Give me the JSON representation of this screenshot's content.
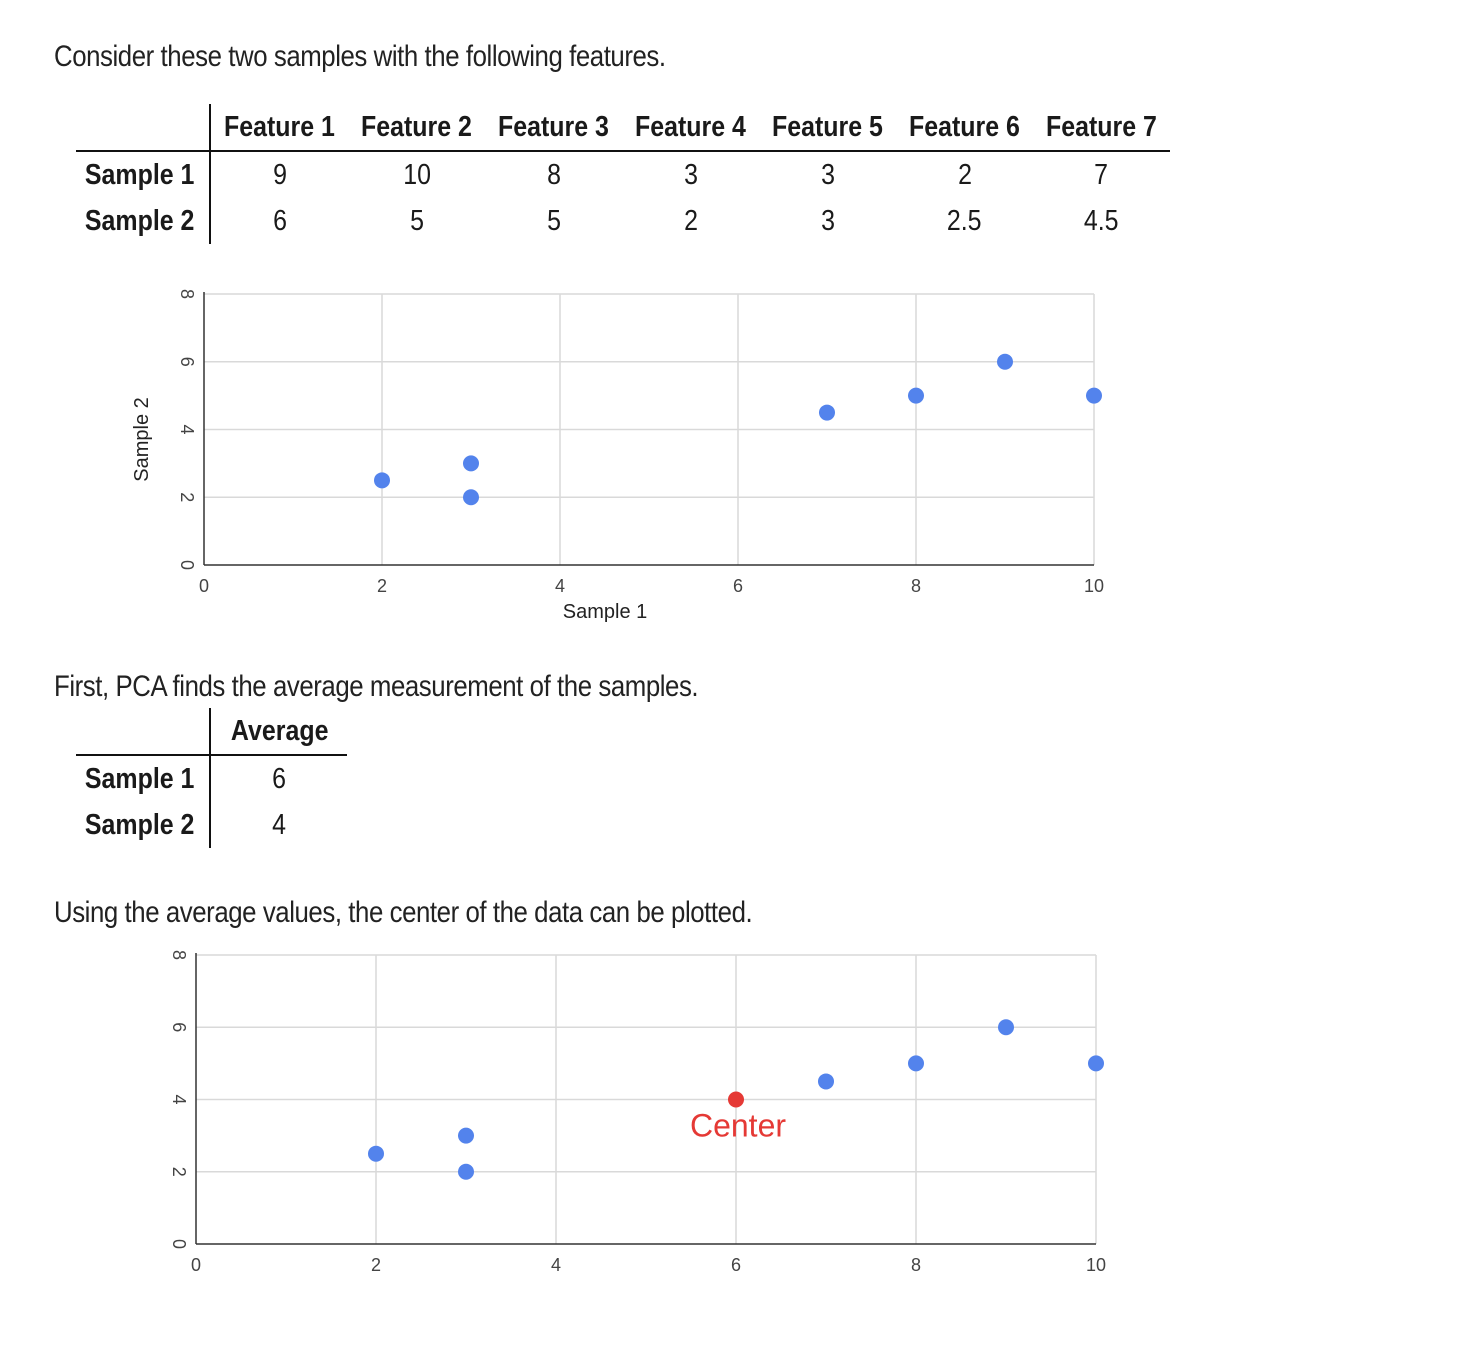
{
  "captions": {
    "intro": "Consider these two samples with the following features.",
    "average": "First, PCA finds the average measurement of the samples.",
    "center": "Using the average values, the center of the data can be plotted."
  },
  "features_table": {
    "columns": [
      "Feature 1",
      "Feature 2",
      "Feature 3",
      "Feature 4",
      "Feature 5",
      "Feature 6",
      "Feature 7"
    ],
    "rows": [
      {
        "label": "Sample 1",
        "values": [
          "9",
          "10",
          "8",
          "3",
          "3",
          "2",
          "7"
        ]
      },
      {
        "label": "Sample 2",
        "values": [
          "6",
          "5",
          "5",
          "2",
          "3",
          "2.5",
          "4.5"
        ]
      }
    ]
  },
  "average_table": {
    "column": "Average",
    "rows": [
      {
        "label": "Sample 1",
        "value": "6"
      },
      {
        "label": "Sample 2",
        "value": "4"
      }
    ]
  },
  "colors": {
    "points": "#5383EC",
    "center": "#E53935"
  },
  "chart_data": [
    {
      "type": "scatter",
      "xlabel": "Sample 1",
      "ylabel": "Sample 2",
      "xlim": [
        0,
        10
      ],
      "ylim": [
        0,
        8
      ],
      "xticks": [
        0,
        2,
        4,
        6,
        8,
        10
      ],
      "yticks": [
        0,
        2,
        4,
        6,
        8
      ],
      "grid": true,
      "x": [
        9,
        10,
        8,
        3,
        3,
        2,
        7
      ],
      "y": [
        6,
        5,
        5,
        2,
        3,
        2.5,
        4.5
      ]
    },
    {
      "type": "scatter",
      "xlabel": "",
      "ylabel": "",
      "xlim": [
        0,
        10
      ],
      "ylim": [
        0,
        8
      ],
      "xticks": [
        0,
        2,
        4,
        6,
        8,
        10
      ],
      "yticks": [
        0,
        2,
        4,
        6,
        8
      ],
      "grid": true,
      "x": [
        9,
        10,
        8,
        3,
        3,
        2,
        7
      ],
      "y": [
        6,
        5,
        5,
        2,
        3,
        2.5,
        4.5
      ],
      "highlight": {
        "label": "Center",
        "x": 6,
        "y": 4
      }
    }
  ]
}
